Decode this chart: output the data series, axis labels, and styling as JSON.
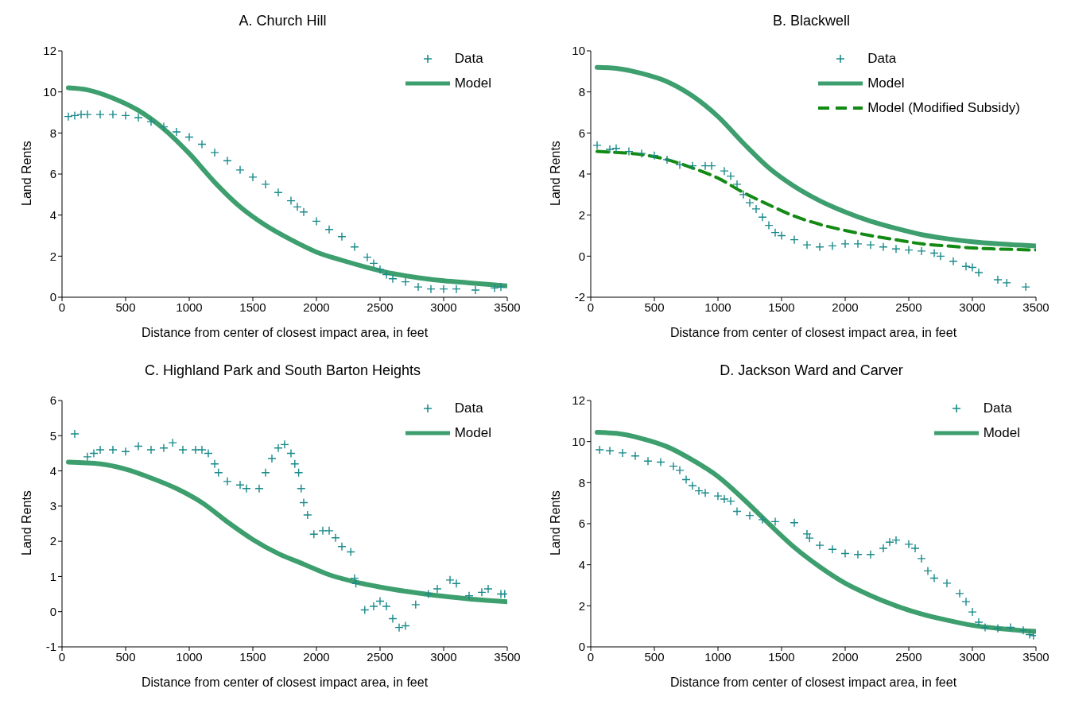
{
  "chart_data": [
    {
      "type": "scatter",
      "title": "A. Church Hill",
      "xlabel": "Distance from center of closest impact area, in feet",
      "ylabel": "Land Rents",
      "xlim": [
        0,
        3500
      ],
      "xticks": [
        0,
        500,
        1000,
        1500,
        2000,
        2500,
        3000,
        3500
      ],
      "ylim": [
        0,
        12
      ],
      "yticks": [
        0,
        2,
        4,
        6,
        8,
        10,
        12
      ],
      "grid": false,
      "legend": "top right",
      "series": [
        {
          "name": "Data",
          "marker": "cross",
          "color": "#1a8a8a",
          "x": [
            50,
            100,
            150,
            200,
            300,
            400,
            500,
            600,
            700,
            800,
            900,
            1000,
            1100,
            1200,
            1300,
            1400,
            1500,
            1600,
            1700,
            1800,
            1850,
            1900,
            2000,
            2100,
            2200,
            2300,
            2400,
            2450,
            2500,
            2550,
            2600,
            2700,
            2800,
            2900,
            3000,
            3100,
            3250,
            3400,
            3450
          ],
          "values": [
            8.8,
            8.85,
            8.9,
            8.9,
            8.9,
            8.9,
            8.85,
            8.75,
            8.55,
            8.3,
            8.05,
            7.8,
            7.45,
            7.05,
            6.65,
            6.2,
            5.85,
            5.5,
            5.1,
            4.7,
            4.4,
            4.15,
            3.7,
            3.3,
            2.95,
            2.45,
            1.95,
            1.65,
            1.35,
            1.1,
            0.9,
            0.75,
            0.5,
            0.4,
            0.4,
            0.4,
            0.35,
            0.45,
            0.5
          ]
        },
        {
          "name": "Model",
          "type": "line",
          "line_style": "solid",
          "color": "#3d9e6e",
          "x": [
            50,
            200,
            400,
            600,
            800,
            1000,
            1200,
            1400,
            1600,
            1800,
            2000,
            2200,
            2400,
            2600,
            2800,
            3000,
            3200,
            3400,
            3500
          ],
          "values": [
            10.2,
            10.1,
            9.7,
            9.1,
            8.2,
            7.0,
            5.6,
            4.4,
            3.5,
            2.8,
            2.2,
            1.8,
            1.45,
            1.15,
            0.95,
            0.8,
            0.7,
            0.6,
            0.55
          ]
        }
      ]
    },
    {
      "type": "scatter",
      "title": "B. Blackwell",
      "xlabel": "Distance from center of closest impact area, in feet",
      "ylabel": "Land Rents",
      "xlim": [
        0,
        3500
      ],
      "xticks": [
        0,
        500,
        1000,
        1500,
        2000,
        2500,
        3000,
        3500
      ],
      "ylim": [
        -2,
        10
      ],
      "yticks": [
        -2,
        0,
        2,
        4,
        6,
        8,
        10
      ],
      "grid": false,
      "legend": "top right",
      "series": [
        {
          "name": "Data",
          "marker": "cross",
          "color": "#1a8a8a",
          "x": [
            50,
            150,
            200,
            300,
            400,
            500,
            600,
            700,
            800,
            900,
            950,
            1050,
            1100,
            1150,
            1200,
            1250,
            1300,
            1350,
            1400,
            1450,
            1500,
            1600,
            1700,
            1800,
            1900,
            2000,
            2100,
            2200,
            2300,
            2400,
            2500,
            2600,
            2700,
            2750,
            2850,
            2950,
            3000,
            3050,
            3200,
            3270,
            3420
          ],
          "values": [
            5.4,
            5.2,
            5.25,
            5.1,
            5.0,
            4.9,
            4.7,
            4.45,
            4.4,
            4.4,
            4.4,
            4.15,
            3.9,
            3.5,
            3.0,
            2.6,
            2.3,
            1.9,
            1.5,
            1.15,
            1.0,
            0.8,
            0.55,
            0.45,
            0.5,
            0.6,
            0.6,
            0.55,
            0.45,
            0.35,
            0.3,
            0.25,
            0.15,
            0.0,
            -0.25,
            -0.5,
            -0.55,
            -0.8,
            -1.15,
            -1.3,
            -1.5
          ]
        },
        {
          "name": "Model",
          "type": "line",
          "line_style": "solid",
          "color": "#3d9e6e",
          "x": [
            50,
            200,
            400,
            600,
            800,
            1000,
            1200,
            1400,
            1600,
            1800,
            2000,
            2200,
            2400,
            2600,
            2800,
            3000,
            3200,
            3500
          ],
          "values": [
            9.2,
            9.15,
            8.9,
            8.5,
            7.8,
            6.8,
            5.5,
            4.3,
            3.4,
            2.7,
            2.15,
            1.7,
            1.35,
            1.05,
            0.85,
            0.7,
            0.6,
            0.5
          ]
        },
        {
          "name": "Model (Modified Subsidy)",
          "type": "line",
          "line_style": "dashed",
          "color": "#138a13",
          "x": [
            50,
            200,
            400,
            600,
            800,
            1000,
            1200,
            1400,
            1600,
            1800,
            2000,
            2200,
            2400,
            2600,
            2800,
            3000,
            3200,
            3500
          ],
          "values": [
            5.1,
            5.05,
            4.95,
            4.7,
            4.3,
            3.8,
            3.1,
            2.5,
            1.95,
            1.55,
            1.25,
            1.0,
            0.8,
            0.6,
            0.5,
            0.4,
            0.35,
            0.3
          ]
        }
      ]
    },
    {
      "type": "scatter",
      "title": "C. Highland Park and South Barton Heights",
      "xlabel": "Distance from center of closest impact area, in feet",
      "ylabel": "Land Rents",
      "xlim": [
        0,
        3500
      ],
      "xticks": [
        0,
        500,
        1000,
        1500,
        2000,
        2500,
        3000,
        3500
      ],
      "ylim": [
        -1,
        6
      ],
      "yticks": [
        -1,
        0,
        1,
        2,
        3,
        4,
        5,
        6
      ],
      "grid": false,
      "legend": "top right",
      "series": [
        {
          "name": "Data",
          "marker": "cross",
          "color": "#1a8a8a",
          "x": [
            100,
            200,
            250,
            300,
            400,
            500,
            600,
            700,
            800,
            870,
            950,
            1050,
            1100,
            1150,
            1200,
            1230,
            1300,
            1400,
            1450,
            1550,
            1600,
            1650,
            1700,
            1750,
            1800,
            1830,
            1860,
            1880,
            1900,
            1930,
            1980,
            2050,
            2100,
            2150,
            2200,
            2270,
            2300,
            2310,
            2380,
            2450,
            2500,
            2550,
            2600,
            2650,
            2700,
            2780,
            2880,
            2950,
            3050,
            3100,
            3200,
            3300,
            3350,
            3450,
            3480
          ],
          "values": [
            5.05,
            4.4,
            4.5,
            4.6,
            4.6,
            4.55,
            4.7,
            4.6,
            4.65,
            4.8,
            4.6,
            4.6,
            4.6,
            4.5,
            4.2,
            3.95,
            3.7,
            3.6,
            3.5,
            3.5,
            3.95,
            4.35,
            4.65,
            4.75,
            4.5,
            4.2,
            3.95,
            3.5,
            3.1,
            2.75,
            2.2,
            2.3,
            2.3,
            2.1,
            1.85,
            1.7,
            0.95,
            0.8,
            0.05,
            0.15,
            0.3,
            0.15,
            -0.2,
            -0.45,
            -0.4,
            0.2,
            0.5,
            0.65,
            0.9,
            0.8,
            0.45,
            0.55,
            0.65,
            0.5,
            0.5
          ]
        },
        {
          "name": "Model",
          "type": "line",
          "line_style": "solid",
          "color": "#3d9e6e",
          "x": [
            50,
            300,
            500,
            700,
            900,
            1100,
            1300,
            1500,
            1700,
            1900,
            2100,
            2300,
            2500,
            2700,
            2900,
            3100,
            3300,
            3500
          ],
          "values": [
            4.25,
            4.2,
            4.05,
            3.8,
            3.5,
            3.1,
            2.55,
            2.05,
            1.65,
            1.35,
            1.05,
            0.85,
            0.7,
            0.58,
            0.48,
            0.4,
            0.33,
            0.28
          ]
        }
      ]
    },
    {
      "type": "scatter",
      "title": "D. Jackson Ward and Carver",
      "xlabel": "Distance  from center of closest impact area, in feet",
      "ylabel": "Land Rents",
      "xlim": [
        0,
        3500
      ],
      "xticks": [
        0,
        500,
        1000,
        1500,
        2000,
        2500,
        3000,
        3500
      ],
      "ylim": [
        0,
        12
      ],
      "yticks": [
        0,
        2,
        4,
        6,
        8,
        10,
        12
      ],
      "grid": false,
      "legend": "top right",
      "series": [
        {
          "name": "Data",
          "marker": "cross",
          "color": "#1a8a8a",
          "x": [
            70,
            150,
            250,
            350,
            450,
            550,
            650,
            700,
            750,
            800,
            850,
            900,
            1000,
            1050,
            1100,
            1150,
            1250,
            1350,
            1450,
            1600,
            1700,
            1720,
            1800,
            1900,
            2000,
            2100,
            2200,
            2300,
            2350,
            2400,
            2500,
            2550,
            2600,
            2650,
            2700,
            2800,
            2900,
            2950,
            3000,
            3050,
            3100,
            3200,
            3300,
            3400,
            3450,
            3480
          ],
          "values": [
            9.6,
            9.55,
            9.45,
            9.3,
            9.05,
            9.0,
            8.8,
            8.6,
            8.15,
            7.85,
            7.6,
            7.5,
            7.35,
            7.2,
            7.1,
            6.6,
            6.4,
            6.2,
            6.1,
            6.05,
            5.5,
            5.3,
            4.95,
            4.75,
            4.55,
            4.5,
            4.5,
            4.8,
            5.1,
            5.2,
            5.0,
            4.8,
            4.3,
            3.7,
            3.35,
            3.1,
            2.6,
            2.2,
            1.7,
            1.2,
            0.95,
            0.9,
            0.95,
            0.8,
            0.6,
            0.55
          ]
        },
        {
          "name": "Model",
          "type": "line",
          "line_style": "solid",
          "color": "#3d9e6e",
          "x": [
            50,
            200,
            400,
            600,
            800,
            1000,
            1200,
            1400,
            1600,
            1800,
            2000,
            2200,
            2400,
            2600,
            2800,
            3000,
            3200,
            3500
          ],
          "values": [
            10.45,
            10.4,
            10.15,
            9.75,
            9.1,
            8.3,
            7.2,
            6.0,
            4.85,
            3.9,
            3.1,
            2.5,
            2.0,
            1.6,
            1.3,
            1.05,
            0.9,
            0.75
          ]
        }
      ]
    }
  ]
}
